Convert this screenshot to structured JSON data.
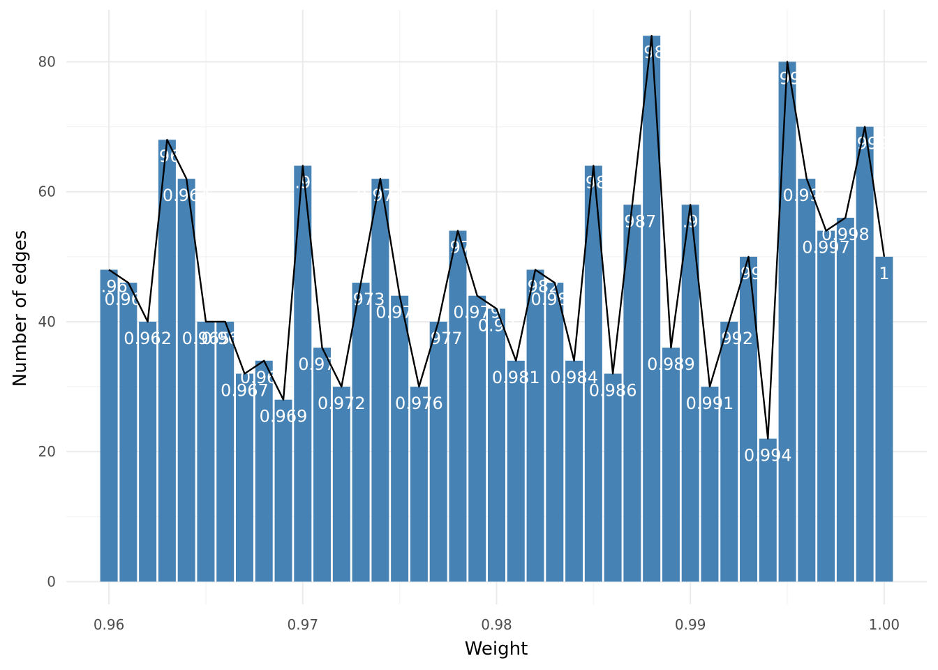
{
  "chart_data": {
    "type": "bar",
    "xlabel": "Weight",
    "ylabel": "Number of edges",
    "xlim": [
      0.9578,
      1.0022
    ],
    "ylim": [
      -3.5,
      88
    ],
    "x_ticks": [
      0.96,
      0.97,
      0.98,
      0.99,
      1.0
    ],
    "x_tick_labels": [
      "0.96",
      "0.97",
      "0.98",
      "0.99",
      "1.00"
    ],
    "y_ticks": [
      0,
      20,
      40,
      60,
      80
    ],
    "y_tick_labels": [
      "0",
      "20",
      "40",
      "60",
      "80"
    ],
    "bar_color": "#4682b4",
    "line_color": "#000000",
    "grid": true,
    "overlay": "line connecting bar tops",
    "series": [
      {
        "x": [
          0.96,
          0.961,
          0.962,
          0.963,
          0.964,
          0.965,
          0.966,
          0.967,
          0.968,
          0.969,
          0.97,
          0.971,
          0.972,
          0.973,
          0.974,
          0.975,
          0.976,
          0.977,
          0.978,
          0.979,
          0.98,
          0.981,
          0.982,
          0.983,
          0.984,
          0.985,
          0.986,
          0.987,
          0.988,
          0.989,
          0.99,
          0.991,
          0.992,
          0.993,
          0.994,
          0.995,
          0.996,
          0.997,
          0.998,
          0.999,
          1.0
        ],
        "values": [
          48,
          46,
          40,
          68,
          62,
          40,
          40,
          32,
          34,
          28,
          64,
          36,
          30,
          46,
          62,
          44,
          30,
          40,
          54,
          44,
          42,
          34,
          48,
          46,
          34,
          64,
          32,
          58,
          84,
          36,
          58,
          30,
          40,
          50,
          22,
          80,
          62,
          54,
          56,
          70,
          50
        ],
        "labels": [
          "0.96",
          "0.961",
          "0.962",
          "0.963",
          "0.964",
          "0.965",
          "0.966",
          "0.967",
          "0.968",
          "0.969",
          "0.97",
          "0.971",
          "0.972",
          "0.973",
          "0.974",
          "0.975",
          "0.976",
          "0.977",
          "0.978",
          "0.979",
          "0.98",
          "0.981",
          "0.982",
          "0.983",
          "0.984",
          "0.985",
          "0.986",
          "0.987",
          "0.988",
          "0.989",
          "0.99",
          "0.991",
          "0.992",
          "0.993",
          "0.994",
          "0.995",
          "0.996",
          "0.997",
          "0.998",
          "0.999",
          "1"
        ]
      }
    ]
  }
}
